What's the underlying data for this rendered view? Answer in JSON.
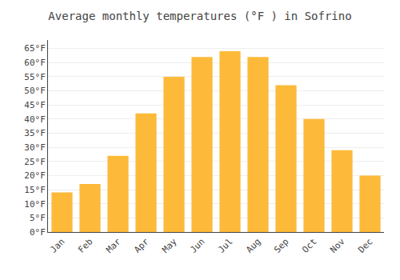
{
  "chart_data": {
    "type": "bar",
    "title": "Average monthly temperatures (°F ) in Sofrino",
    "categories": [
      "Jan",
      "Feb",
      "Mar",
      "Apr",
      "May",
      "Jun",
      "Jul",
      "Aug",
      "Sep",
      "Oct",
      "Nov",
      "Dec"
    ],
    "values": [
      14,
      17,
      27,
      42,
      55,
      62,
      64,
      62,
      52,
      40,
      29,
      20
    ],
    "color": "#FDBA3A",
    "ylim": [
      0,
      68
    ],
    "yticks": [
      {
        "value": 0,
        "label": "0°F"
      },
      {
        "value": 5,
        "label": "5°F"
      },
      {
        "value": 10,
        "label": "10°F"
      },
      {
        "value": 15,
        "label": "15°F"
      },
      {
        "value": 20,
        "label": "20°F"
      },
      {
        "value": 25,
        "label": "25°F"
      },
      {
        "value": 30,
        "label": "30°F"
      },
      {
        "value": 35,
        "label": "35°F"
      },
      {
        "value": 40,
        "label": "40°F"
      },
      {
        "value": 45,
        "label": "45°F"
      },
      {
        "value": 50,
        "label": "50°F"
      },
      {
        "value": 55,
        "label": "55°F"
      },
      {
        "value": 60,
        "label": "60°F"
      },
      {
        "value": 65,
        "label": "65°F"
      }
    ],
    "grid": true
  }
}
